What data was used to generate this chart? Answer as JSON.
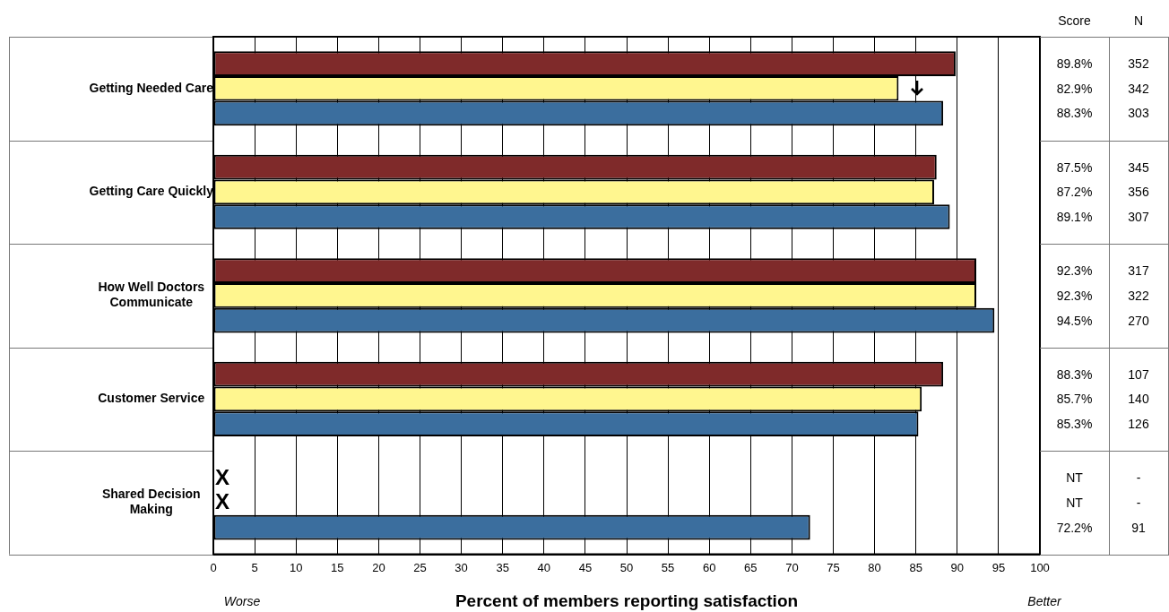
{
  "chart_data": {
    "type": "bar",
    "orientation": "horizontal",
    "xlabel": "Percent of members reporting satisfaction",
    "categories": [
      "Getting Needed Care",
      "Getting Care Quickly",
      "How Well Doctors Communicate",
      "Customer Service",
      "Shared Decision Making"
    ],
    "series": [
      {
        "color": "#7f2a2a",
        "values": [
          89.8,
          87.5,
          92.3,
          88.3,
          null
        ]
      },
      {
        "color": "#fff68f",
        "values": [
          82.9,
          87.2,
          92.3,
          85.7,
          null
        ]
      },
      {
        "color": "#3b6e9e",
        "values": [
          88.3,
          89.1,
          94.5,
          85.3,
          72.2
        ]
      }
    ],
    "xlim": [
      0,
      100
    ],
    "xticks": [
      0,
      5,
      10,
      15,
      20,
      25,
      30,
      35,
      40,
      45,
      50,
      55,
      60,
      65,
      70,
      75,
      80,
      85,
      90,
      95,
      100
    ],
    "grid": "x",
    "legend": false,
    "annotations": [
      "Worse",
      "Better",
      "Score",
      "N",
      "89.8%",
      "82.9%",
      "88.3%",
      "87.5%",
      "87.2%",
      "89.1%",
      "92.3%",
      "92.3%",
      "94.5%",
      "88.3%",
      "85.7%",
      "85.3%",
      "NT",
      "NT",
      "72.2%",
      "352",
      "342",
      "303",
      "345",
      "356",
      "307",
      "317",
      "322",
      "270",
      "107",
      "140",
      "126",
      "-",
      "-",
      "91",
      "X",
      "X"
    ]
  }
}
